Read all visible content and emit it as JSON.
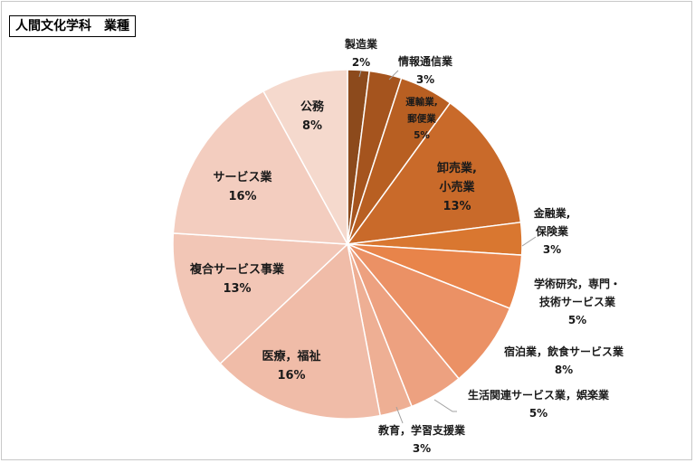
{
  "chart_data": {
    "type": "pie",
    "title": "人間文化学科　業種",
    "categories": [
      "製造業",
      "情報通信業",
      "運輸業,郵便業",
      "卸売業,小売業",
      "金融業,保険業",
      "学術研究，専門・技術サービス業",
      "宿泊業，飲食サービス業",
      "生活関連サービス業，娯楽業",
      "教育，学習支援業",
      "医療，福祉",
      "複合サービス事業",
      "サービス業",
      "公務"
    ],
    "values": [
      2,
      3,
      5,
      13,
      3,
      5,
      8,
      5,
      3,
      16,
      13,
      16,
      8
    ],
    "labels": [
      {
        "lines": [
          "製造業"
        ],
        "pct": "2%"
      },
      {
        "lines": [
          "情報通信業"
        ],
        "pct": "3%"
      },
      {
        "lines": [
          "運輸業,",
          "郵便業"
        ],
        "pct": "5%"
      },
      {
        "lines": [
          "卸売業,",
          "小売業"
        ],
        "pct": "13%"
      },
      {
        "lines": [
          "金融業,",
          "保険業"
        ],
        "pct": "3%"
      },
      {
        "lines": [
          "学術研究，専門・",
          "技術サービス業"
        ],
        "pct": "5%"
      },
      {
        "lines": [
          "宿泊業，飲食サービス業"
        ],
        "pct": "8%"
      },
      {
        "lines": [
          "生活関連サービス業，娯楽業"
        ],
        "pct": "5%"
      },
      {
        "lines": [
          "教育，学習支援業"
        ],
        "pct": "3%"
      },
      {
        "lines": [
          "医療，福祉"
        ],
        "pct": "16%"
      },
      {
        "lines": [
          "複合サービス事業"
        ],
        "pct": "13%"
      },
      {
        "lines": [
          "サービス業"
        ],
        "pct": "16%"
      },
      {
        "lines": [
          "公務"
        ],
        "pct": "8%"
      }
    ],
    "colors": [
      "#8c4a1c",
      "#a5541e",
      "#b85f22",
      "#c96a2a",
      "#d97730",
      "#e8844a",
      "#eb9165",
      "#eda180",
      "#eeaf94",
      "#f0bca8",
      "#f2c6b6",
      "#f3cdbf",
      "#f5d9cd"
    ],
    "legend": "none"
  }
}
